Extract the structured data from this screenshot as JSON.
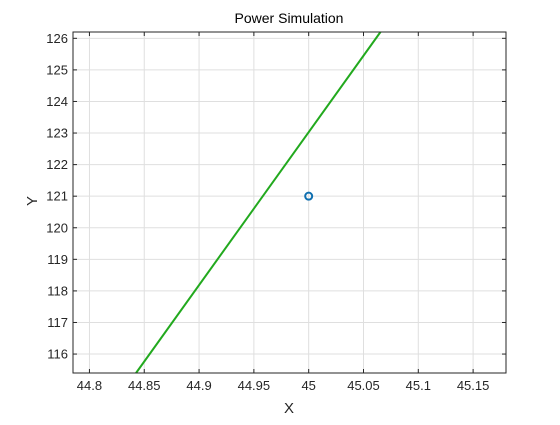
{
  "chart_data": {
    "type": "line",
    "title": "Power Simulation",
    "xlabel": "X",
    "ylabel": "Y",
    "xlim": [
      44.785,
      45.18
    ],
    "ylim": [
      115.4,
      126.2
    ],
    "xticks": [
      44.8,
      44.85,
      44.9,
      44.95,
      45,
      45.05,
      45.1,
      45.15
    ],
    "xtick_labels": [
      "44.8",
      "44.85",
      "44.9",
      "44.95",
      "45",
      "45.05",
      "45.1",
      "45.15"
    ],
    "yticks": [
      116,
      117,
      118,
      119,
      120,
      121,
      122,
      123,
      124,
      125,
      126
    ],
    "ytick_labels": [
      "116",
      "117",
      "118",
      "119",
      "120",
      "121",
      "122",
      "123",
      "124",
      "125",
      "126"
    ],
    "grid": true,
    "series": [
      {
        "type": "line",
        "color": "#22a91e",
        "x": [
          44.8425,
          45.0655
        ],
        "y": [
          115.4,
          126.2
        ]
      },
      {
        "type": "scatter",
        "marker": "circle-open",
        "color": "#0f6fb0",
        "x": [
          45.0
        ],
        "y": [
          121.0
        ]
      }
    ]
  }
}
